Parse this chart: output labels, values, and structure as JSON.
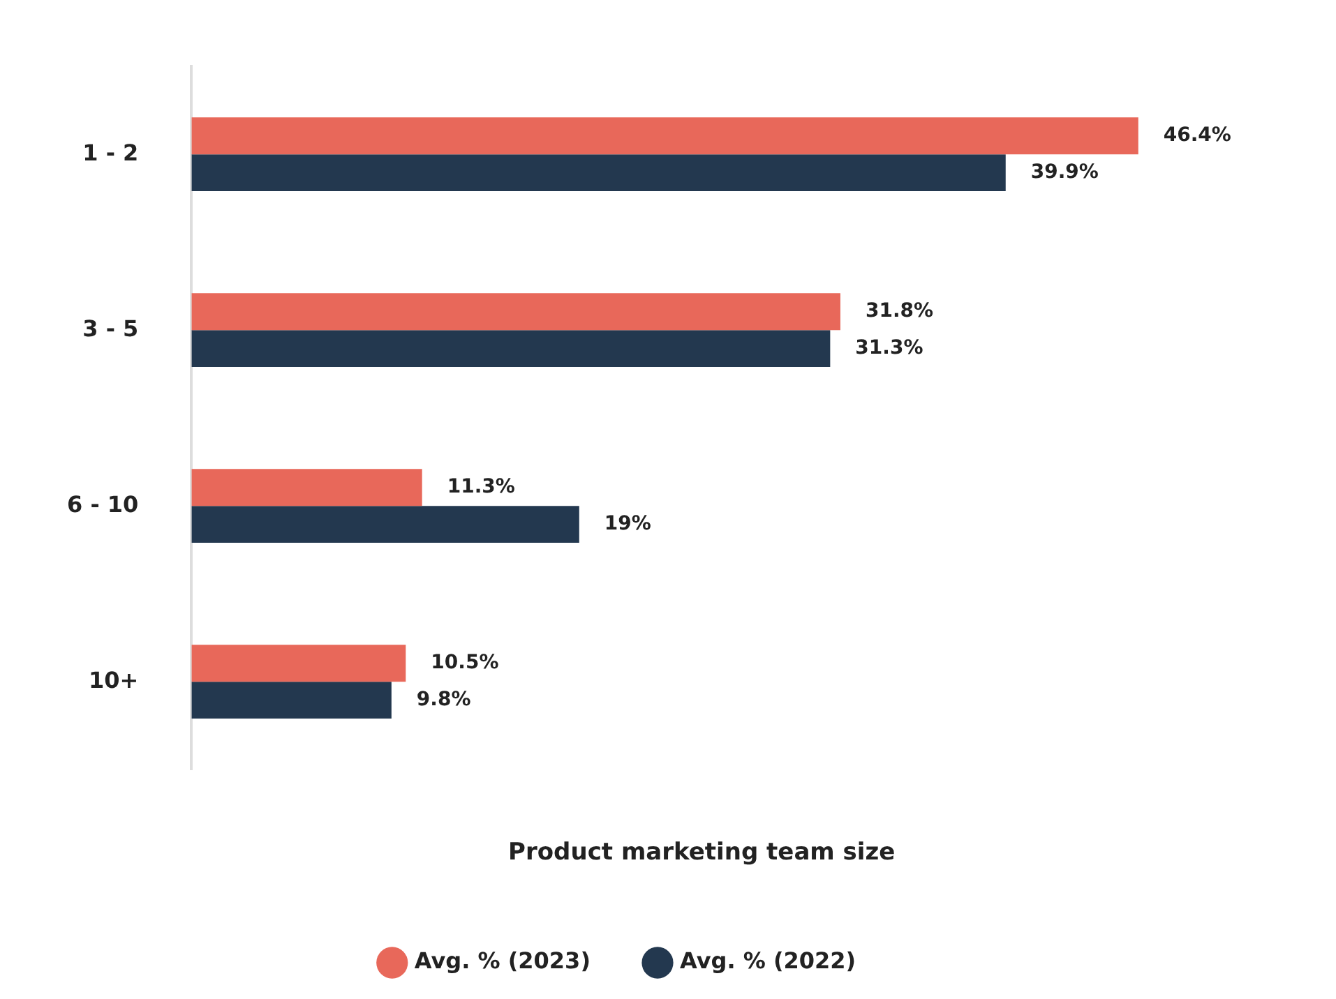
{
  "chart_data": {
    "type": "bar",
    "orientation": "horizontal",
    "xlabel": "Product marketing team size",
    "categories": [
      "1 - 2",
      "3 - 5",
      "6 - 10",
      "10+"
    ],
    "series": [
      {
        "name": "Avg. % (2023)",
        "color": "#e8685a",
        "values": [
          46.4,
          31.8,
          11.3,
          10.5
        ],
        "value_labels": [
          "46.4%",
          "31.8%",
          "11.3%",
          "10.5%"
        ]
      },
      {
        "name": "Avg. % (2022)",
        "color": "#23384f",
        "values": [
          39.9,
          31.3,
          19,
          9.8
        ],
        "value_labels": [
          "39.9%",
          "31.3%",
          "19%",
          "9.8%"
        ]
      }
    ],
    "legend": "bottom",
    "grid": false
  }
}
